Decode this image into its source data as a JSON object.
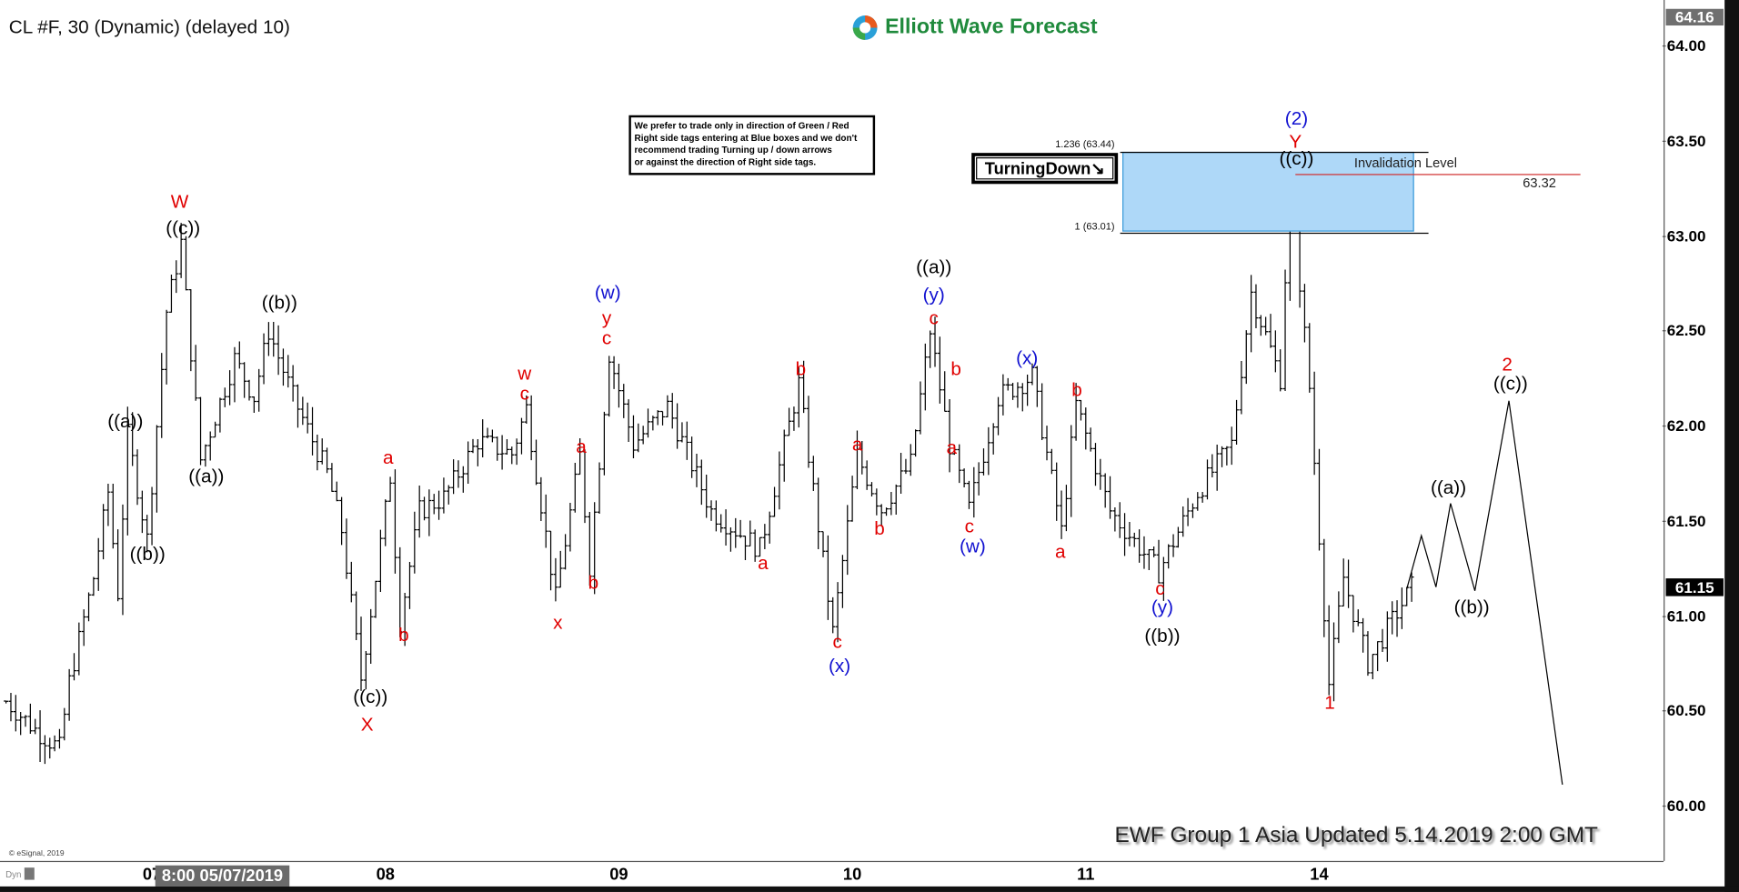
{
  "header": {
    "title": "CL #F, 30 (Dynamic) (delayed 10)",
    "logo_text": "Elliott Wave Forecast"
  },
  "colors": {
    "wave_red": "#e00000",
    "wave_blue": "#1010d0",
    "wave_black": "#000000",
    "blue_box": "#aed8f8",
    "invalidation_line": "#d03030",
    "logo_green": "#1f8a3c"
  },
  "note": {
    "lines": [
      "We prefer to trade only in direction of Green / Red",
      "Right side tags entering at Blue boxes and we don't",
      "recommend trading Turning up / down arrows",
      "or against the direction of Right side tags."
    ]
  },
  "fib": {
    "upper_label": "1.236 (63.44)",
    "lower_label": "1 (63.01)",
    "upper": 63.44,
    "lower": 63.01
  },
  "turning_tag": "TurningDown",
  "invalidation": {
    "label": "Invalidation Level",
    "value": "63.32"
  },
  "footer": {
    "update_text": "EWF Group 1 Asia Updated 5.14.2019 2:00 GMT",
    "copyright": "© eSignal, 2019",
    "dyn": "Dyn"
  },
  "price_axis": {
    "ticks": [
      "64.00",
      "63.50",
      "63.00",
      "62.50",
      "62.00",
      "61.50",
      "61.00",
      "60.50",
      "60.00"
    ],
    "high_tag": "64.16",
    "last_tag": "61.15"
  },
  "time_axis": {
    "ticks": [
      "07",
      "08",
      "09",
      "10",
      "11",
      "14"
    ],
    "cursor_label": "8:00 05/07/2019"
  },
  "labels": [
    {
      "text": "W",
      "color": "red"
    },
    {
      "text": "((c))",
      "color": "black"
    },
    {
      "text": "((a))",
      "color": "black"
    },
    {
      "text": "((b))",
      "color": "black"
    },
    {
      "text": "((a))",
      "color": "black"
    },
    {
      "text": "((b))",
      "color": "black"
    },
    {
      "text": "((c))",
      "color": "black"
    },
    {
      "text": "X",
      "color": "red"
    },
    {
      "text": "a",
      "color": "red"
    },
    {
      "text": "b",
      "color": "red"
    },
    {
      "text": "w",
      "color": "red"
    },
    {
      "text": "c",
      "color": "red"
    },
    {
      "text": "x",
      "color": "red"
    },
    {
      "text": "a",
      "color": "red"
    },
    {
      "text": "b",
      "color": "red"
    },
    {
      "text": "(w)",
      "color": "blue"
    },
    {
      "text": "y",
      "color": "red"
    },
    {
      "text": "c",
      "color": "red"
    },
    {
      "text": "a",
      "color": "red"
    },
    {
      "text": "b",
      "color": "red"
    },
    {
      "text": "c",
      "color": "red"
    },
    {
      "text": "(x)",
      "color": "blue"
    },
    {
      "text": "a",
      "color": "red"
    },
    {
      "text": "b",
      "color": "red"
    },
    {
      "text": "((a))",
      "color": "black"
    },
    {
      "text": "(y)",
      "color": "blue"
    },
    {
      "text": "c",
      "color": "red"
    },
    {
      "text": "b",
      "color": "red"
    },
    {
      "text": "a",
      "color": "red"
    },
    {
      "text": "c",
      "color": "red"
    },
    {
      "text": "(w)",
      "color": "blue"
    },
    {
      "text": "(x)",
      "color": "blue"
    },
    {
      "text": "b",
      "color": "red"
    },
    {
      "text": "a",
      "color": "red"
    },
    {
      "text": "c",
      "color": "red"
    },
    {
      "text": "(y)",
      "color": "blue"
    },
    {
      "text": "((b))",
      "color": "black"
    },
    {
      "text": "(2)",
      "color": "blue"
    },
    {
      "text": "Y",
      "color": "red"
    },
    {
      "text": "((c))",
      "color": "black"
    },
    {
      "text": "1",
      "color": "red"
    },
    {
      "text": "((a))",
      "color": "black"
    },
    {
      "text": "((b))",
      "color": "black"
    },
    {
      "text": "2",
      "color": "red"
    },
    {
      "text": "((c))",
      "color": "black"
    }
  ],
  "chart_data": {
    "type": "ohlc-bar",
    "interval": "30 min",
    "ylim": [
      59.71,
      64.16
    ],
    "price_path": [
      [
        "06 09:00",
        60.55
      ],
      [
        "06 12:00",
        60.4
      ],
      [
        "06 14:30",
        60.3
      ],
      [
        "06 15:30",
        60.65
      ],
      [
        "06 18:00",
        61.2
      ],
      [
        "06 19:30",
        61.65
      ],
      [
        "06 20:30",
        61.12
      ],
      [
        "06 21:30",
        61.95
      ],
      [
        "06 23:30",
        61.4
      ],
      [
        "07 01:30",
        62.6
      ],
      [
        "07 03:00",
        62.96
      ],
      [
        "07 05:00",
        61.82
      ],
      [
        "07 08:30",
        62.35
      ],
      [
        "07 10:30",
        62.15
      ],
      [
        "07 12:00",
        62.5
      ],
      [
        "07 14:30",
        62.15
      ],
      [
        "07 18:00",
        61.75
      ],
      [
        "07 19:30",
        61.45
      ],
      [
        "07 21:30",
        60.67
      ],
      [
        "08 00:30",
        61.73
      ],
      [
        "08 01:30",
        60.97
      ],
      [
        "08 03:30",
        61.55
      ],
      [
        "08 06:00",
        61.62
      ],
      [
        "08 09:30",
        61.92
      ],
      [
        "08 13:00",
        61.85
      ],
      [
        "08 14:30",
        62.09
      ],
      [
        "08 17:30",
        61.09
      ],
      [
        "08 20:00",
        61.84
      ],
      [
        "08 21:00",
        61.26
      ],
      [
        "08 23:00",
        62.38
      ],
      [
        "09 01:30",
        61.9
      ],
      [
        "09 05:00",
        62.1
      ],
      [
        "09 09:30",
        61.55
      ],
      [
        "09 14:30",
        61.35
      ],
      [
        "09 18:30",
        62.22
      ],
      [
        "09 22:00",
        60.91
      ],
      [
        "10 00:30",
        61.84
      ],
      [
        "10 03:00",
        61.56
      ],
      [
        "10 06:00",
        61.8
      ],
      [
        "10 08:00",
        62.5
      ],
      [
        "10 10:00",
        61.9
      ],
      [
        "10 12:00",
        61.56
      ],
      [
        "10 15:00",
        62.15
      ],
      [
        "10 18:30",
        62.26
      ],
      [
        "10 21:30",
        61.44
      ],
      [
        "10 23:00",
        62.11
      ],
      [
        "11 02:30",
        61.55
      ],
      [
        "11 07:30",
        61.23
      ],
      [
        "11 11:30",
        61.65
      ],
      [
        "11 15:00",
        61.9
      ],
      [
        "11 17:00",
        62.7
      ],
      [
        "11 20:00",
        62.25
      ],
      [
        "11 21:00",
        63.31
      ],
      [
        "11 23:00",
        62.2
      ],
      [
        "14 01:00",
        60.64
      ],
      [
        "14 02:30",
        61.2
      ],
      [
        "14 05:00",
        60.75
      ],
      [
        "14 09:30",
        61.15
      ]
    ],
    "projection": [
      [
        "14 09:00",
        61.14
      ],
      [
        "14 10:30",
        61.42
      ],
      [
        "14 12:00",
        61.15
      ],
      [
        "14 13:30",
        61.59
      ],
      [
        "14 16:00",
        61.13
      ],
      [
        "14 19:30",
        62.13
      ],
      [
        "15 01:00",
        60.11
      ]
    ]
  }
}
